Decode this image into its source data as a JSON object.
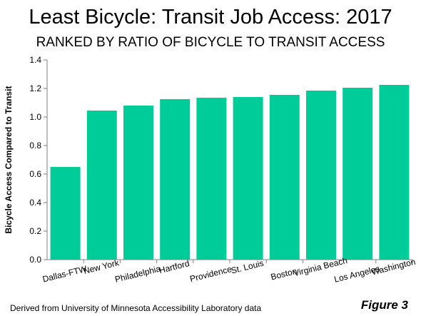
{
  "title": "Least Bicycle: Transit Job Access: 2017",
  "subtitle": "RANKED BY RATIO OF BICYCLE TO TRANSIT ACCESS",
  "source": "Derived from University of Minnesota Accessibility Laboratory data",
  "figure_label": "Figure 3",
  "chart_data": {
    "type": "bar",
    "categories": [
      "Dallas-FTW",
      "New York",
      "Philadelphia",
      "Hartford",
      "Providence",
      "St. Louis",
      "Boston",
      "Virginia Beach",
      "Los Angeles",
      "Washington"
    ],
    "values": [
      0.65,
      1.045,
      1.08,
      1.125,
      1.135,
      1.14,
      1.155,
      1.185,
      1.205,
      1.225
    ],
    "ylabel": "Bicycle Access Compared to Transit",
    "xlabel": "",
    "ylim": [
      0,
      1.4
    ],
    "yticks": [
      "0.0",
      "0.2",
      "0.4",
      "0.6",
      "0.8",
      "1.0",
      "1.2",
      "1.4"
    ],
    "bar_color": "#00CC99",
    "grid": false
  }
}
